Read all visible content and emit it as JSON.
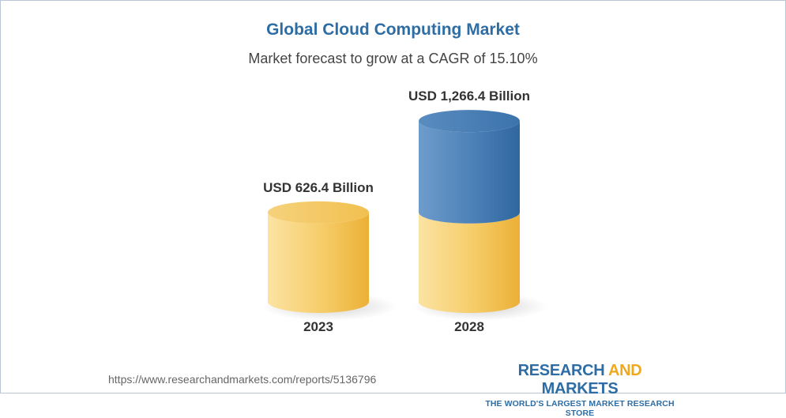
{
  "header": {
    "title": "Global Cloud Computing Market",
    "subtitle": "Market forecast to grow at a CAGR of 15.10%"
  },
  "chart_data": {
    "type": "bar",
    "style": "3d-cylinder",
    "title": "Global Cloud Computing Market",
    "subtitle": "Market forecast to grow at a CAGR of 15.10%",
    "categories": [
      "2023",
      "2028"
    ],
    "values": [
      626.4,
      1266.4
    ],
    "data_labels": [
      "USD 626.4 Billion",
      "USD 1,266.4 Billion"
    ],
    "unit": "USD Billion",
    "highlight": {
      "category": "2028",
      "base_value": 626.4,
      "increment": 640.0
    },
    "grid": false,
    "legend": "none",
    "colors": {
      "base": "#f2bc3e",
      "growth": "#3f7ab3"
    }
  },
  "footer": {
    "url": "https://www.researchandmarkets.com/reports/5136796",
    "brand_part1": "RESEARCH ",
    "brand_part2": "AND",
    "brand_part3": " MARKETS",
    "tagline": "THE WORLD'S LARGEST MARKET RESEARCH STORE"
  }
}
